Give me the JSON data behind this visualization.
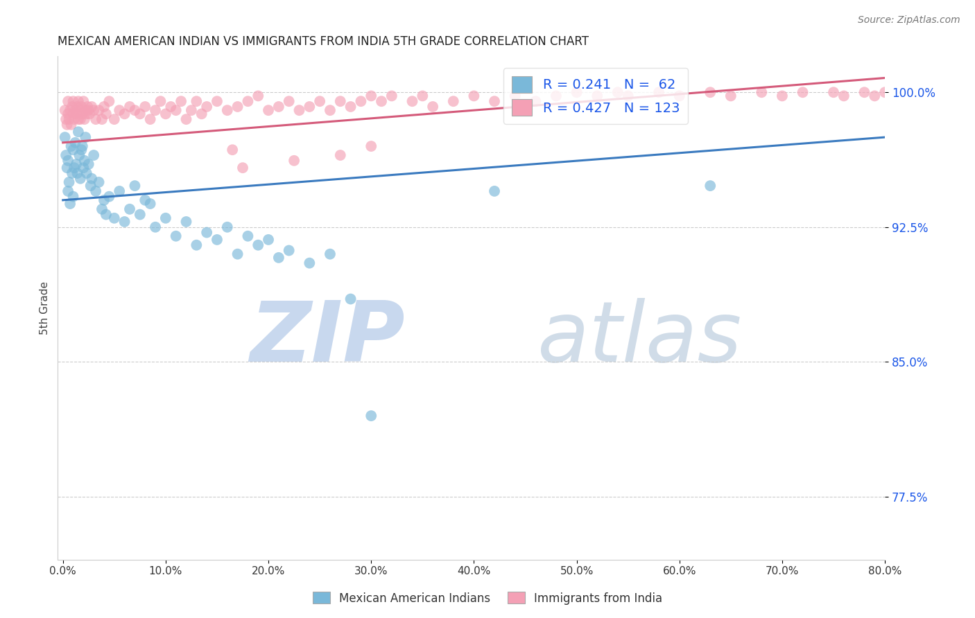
{
  "title": "MEXICAN AMERICAN INDIAN VS IMMIGRANTS FROM INDIA 5TH GRADE CORRELATION CHART",
  "source": "Source: ZipAtlas.com",
  "xlabel_vals": [
    0.0,
    10.0,
    20.0,
    30.0,
    40.0,
    50.0,
    60.0,
    70.0,
    80.0
  ],
  "ylabel_vals": [
    77.5,
    85.0,
    92.5,
    100.0
  ],
  "ylabel_label": "5th Grade",
  "xlim": [
    -0.5,
    80.0
  ],
  "ylim": [
    74.0,
    102.0
  ],
  "blue_color": "#7ab8d9",
  "pink_color": "#f4a0b5",
  "blue_line_color": "#3a7abf",
  "pink_line_color": "#d45a7a",
  "text_color": "#1a56e8",
  "blue_R": 0.241,
  "blue_N": 62,
  "pink_R": 0.427,
  "pink_N": 123,
  "watermark_zip": "ZIP",
  "watermark_atlas": "atlas",
  "blue_line_x": [
    0,
    80
  ],
  "blue_line_y": [
    94.0,
    97.5
  ],
  "pink_line_x": [
    0,
    80
  ],
  "pink_line_y": [
    97.2,
    100.8
  ],
  "blue_scatter_x": [
    0.2,
    0.3,
    0.4,
    0.5,
    0.5,
    0.6,
    0.7,
    0.8,
    0.9,
    1.0,
    1.0,
    1.1,
    1.2,
    1.3,
    1.4,
    1.5,
    1.6,
    1.7,
    1.8,
    1.9,
    2.0,
    2.1,
    2.2,
    2.3,
    2.5,
    2.7,
    2.8,
    3.0,
    3.2,
    3.5,
    3.8,
    4.0,
    4.2,
    4.5,
    5.0,
    5.5,
    6.0,
    6.5,
    7.0,
    7.5,
    8.0,
    8.5,
    9.0,
    10.0,
    11.0,
    12.0,
    13.0,
    14.0,
    15.0,
    16.0,
    17.0,
    18.0,
    19.0,
    20.0,
    21.0,
    22.0,
    24.0,
    26.0,
    28.0,
    30.0,
    42.0,
    63.0
  ],
  "blue_scatter_y": [
    97.5,
    96.5,
    95.8,
    94.5,
    96.2,
    95.0,
    93.8,
    97.0,
    95.5,
    96.8,
    94.2,
    95.8,
    97.2,
    96.0,
    95.5,
    97.8,
    96.5,
    95.2,
    96.8,
    97.0,
    95.8,
    96.2,
    97.5,
    95.5,
    96.0,
    94.8,
    95.2,
    96.5,
    94.5,
    95.0,
    93.5,
    94.0,
    93.2,
    94.2,
    93.0,
    94.5,
    92.8,
    93.5,
    94.8,
    93.2,
    94.0,
    93.8,
    92.5,
    93.0,
    92.0,
    92.8,
    91.5,
    92.2,
    91.8,
    92.5,
    91.0,
    92.0,
    91.5,
    91.8,
    90.8,
    91.2,
    90.5,
    91.0,
    88.5,
    82.0,
    94.5,
    94.8
  ],
  "pink_scatter_x": [
    0.2,
    0.3,
    0.4,
    0.5,
    0.5,
    0.6,
    0.7,
    0.8,
    0.9,
    1.0,
    1.0,
    1.1,
    1.2,
    1.3,
    1.4,
    1.5,
    1.5,
    1.6,
    1.7,
    1.8,
    1.9,
    2.0,
    2.1,
    2.2,
    2.3,
    2.4,
    2.5,
    2.6,
    2.8,
    3.0,
    3.2,
    3.5,
    3.8,
    4.0,
    4.2,
    4.5,
    5.0,
    5.5,
    6.0,
    6.5,
    7.0,
    7.5,
    8.0,
    8.5,
    9.0,
    9.5,
    10.0,
    10.5,
    11.0,
    11.5,
    12.0,
    12.5,
    13.0,
    13.5,
    14.0,
    15.0,
    16.0,
    17.0,
    18.0,
    19.0,
    20.0,
    21.0,
    22.0,
    23.0,
    24.0,
    25.0,
    26.0,
    27.0,
    28.0,
    29.0,
    30.0,
    31.0,
    32.0,
    34.0,
    35.0,
    36.0,
    38.0,
    40.0,
    42.0,
    44.0,
    46.0,
    48.0,
    50.0,
    52.0,
    54.0,
    55.0,
    58.0,
    60.0,
    63.0,
    65.0,
    68.0,
    70.0,
    72.0,
    75.0,
    76.0,
    78.0,
    79.0,
    80.0,
    30.0,
    27.0,
    16.5,
    17.5,
    22.5
  ],
  "pink_scatter_y": [
    99.0,
    98.5,
    98.2,
    99.5,
    98.8,
    98.5,
    99.0,
    98.2,
    99.2,
    98.8,
    99.5,
    98.5,
    99.0,
    98.8,
    99.2,
    99.5,
    98.5,
    99.0,
    98.5,
    99.2,
    98.8,
    99.5,
    98.5,
    99.0,
    98.8,
    99.2,
    99.0,
    98.8,
    99.2,
    99.0,
    98.5,
    99.0,
    98.5,
    99.2,
    98.8,
    99.5,
    98.5,
    99.0,
    98.8,
    99.2,
    99.0,
    98.8,
    99.2,
    98.5,
    99.0,
    99.5,
    98.8,
    99.2,
    99.0,
    99.5,
    98.5,
    99.0,
    99.5,
    98.8,
    99.2,
    99.5,
    99.0,
    99.2,
    99.5,
    99.8,
    99.0,
    99.2,
    99.5,
    99.0,
    99.2,
    99.5,
    99.0,
    99.5,
    99.2,
    99.5,
    99.8,
    99.5,
    99.8,
    99.5,
    99.8,
    99.2,
    99.5,
    99.8,
    99.5,
    99.8,
    99.5,
    99.8,
    100.0,
    99.8,
    100.0,
    99.8,
    100.0,
    99.8,
    100.0,
    99.8,
    100.0,
    99.8,
    100.0,
    100.0,
    99.8,
    100.0,
    99.8,
    100.0,
    97.0,
    96.5,
    96.8,
    95.8,
    96.2
  ]
}
